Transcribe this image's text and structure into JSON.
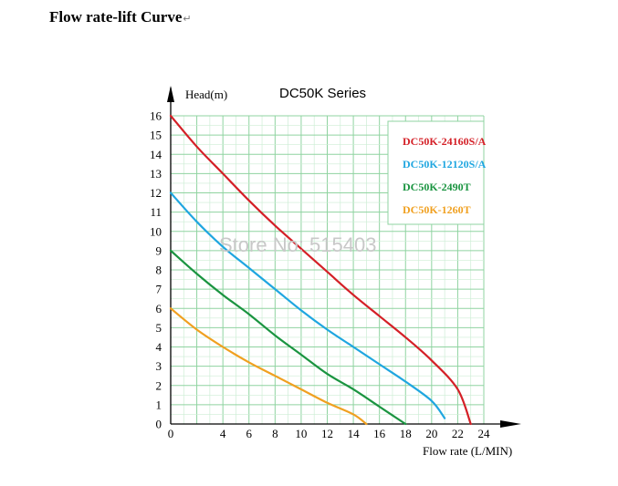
{
  "page": {
    "heading": "Flow rate-lift Curve",
    "heading_mark": "↵"
  },
  "chart_data": {
    "type": "line",
    "title": "DC50K Series",
    "xlabel": "Flow rate (L/MIN)",
    "ylabel": "Head(m)",
    "xlim": [
      0,
      24
    ],
    "ylim": [
      0,
      16
    ],
    "x_ticks": [
      0,
      4,
      6,
      8,
      10,
      12,
      14,
      16,
      18,
      20,
      22,
      24
    ],
    "y_ticks": [
      0,
      1,
      2,
      3,
      4,
      5,
      6,
      7,
      8,
      9,
      10,
      11,
      12,
      13,
      14,
      15,
      16
    ],
    "grid": true,
    "legend_position": "top-right",
    "watermark": "Store No: 515403",
    "series": [
      {
        "name": "DC50K-24160S/A",
        "color": "#d42027",
        "x": [
          0,
          2,
          4,
          6,
          8,
          10,
          12,
          14,
          16,
          18,
          20,
          22,
          23
        ],
        "y": [
          16,
          14.4,
          13,
          11.6,
          10.3,
          9.1,
          7.9,
          6.7,
          5.6,
          4.5,
          3.3,
          1.8,
          0
        ]
      },
      {
        "name": "DC50K-12120S/A",
        "color": "#1fa6e0",
        "x": [
          0,
          2,
          4,
          6,
          8,
          10,
          12,
          14,
          16,
          18,
          20,
          21
        ],
        "y": [
          12,
          10.5,
          9.2,
          8.1,
          7,
          5.9,
          4.9,
          4,
          3.1,
          2.2,
          1.2,
          0.3
        ]
      },
      {
        "name": "DC50K-2490T",
        "color": "#1a9440",
        "x": [
          0,
          2,
          4,
          6,
          8,
          10,
          12,
          14,
          16,
          18
        ],
        "y": [
          9,
          7.8,
          6.7,
          5.7,
          4.6,
          3.6,
          2.6,
          1.8,
          0.9,
          0
        ]
      },
      {
        "name": "DC50K-1260T",
        "color": "#f0a020",
        "x": [
          0,
          2,
          4,
          6,
          8,
          10,
          12,
          14,
          15
        ],
        "y": [
          6,
          4.9,
          4,
          3.2,
          2.5,
          1.8,
          1.1,
          0.5,
          0
        ]
      }
    ]
  }
}
